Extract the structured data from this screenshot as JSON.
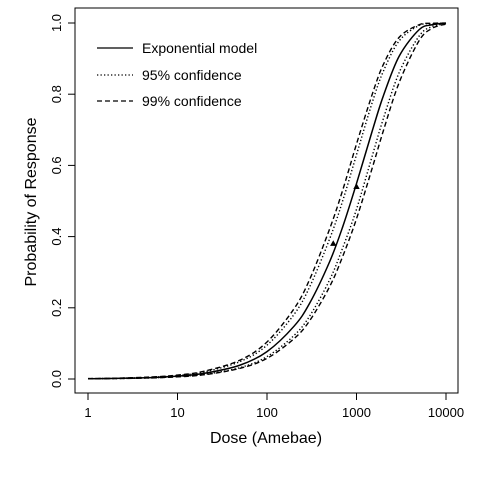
{
  "chart_data": {
    "type": "line",
    "title": "",
    "xlabel": "Dose (Amebae)",
    "ylabel": "Probability of Response",
    "x_scale": "log",
    "xlim": [
      1,
      10000
    ],
    "ylim": [
      0,
      1
    ],
    "grid": false,
    "x_ticks": [
      {
        "value": 1,
        "label": "1"
      },
      {
        "value": 10,
        "label": "10"
      },
      {
        "value": 100,
        "label": "100"
      },
      {
        "value": 1000,
        "label": "1000"
      },
      {
        "value": 10000,
        "label": "10000"
      }
    ],
    "y_ticks": [
      {
        "value": 0.0,
        "label": "0.0"
      },
      {
        "value": 0.2,
        "label": "0.2"
      },
      {
        "value": 0.4,
        "label": "0.4"
      },
      {
        "value": 0.6,
        "label": "0.6"
      },
      {
        "value": 0.8,
        "label": "0.8"
      },
      {
        "value": 1.0,
        "label": "1.0"
      }
    ],
    "legend_position": "top-left",
    "series": [
      {
        "name": "Exponential model",
        "style": "solid",
        "x": [
          1,
          2,
          5,
          10,
          20,
          50,
          100,
          200,
          300,
          500,
          700,
          1000,
          1500,
          2000,
          3000,
          5000,
          7000,
          10000
        ],
        "y": [
          0.0008,
          0.0016,
          0.004,
          0.008,
          0.016,
          0.039,
          0.077,
          0.148,
          0.213,
          0.329,
          0.427,
          0.549,
          0.697,
          0.796,
          0.907,
          0.981,
          0.995,
          0.9997
        ]
      },
      {
        "name": "95% confidence",
        "style": "dotted",
        "x": [
          1,
          2,
          5,
          10,
          20,
          50,
          100,
          200,
          300,
          500,
          700,
          1000,
          1500,
          2000,
          3000,
          5000,
          7000,
          10000
        ],
        "y": [
          0.001,
          0.002,
          0.005,
          0.01,
          0.02,
          0.049,
          0.095,
          0.181,
          0.259,
          0.393,
          0.5,
          0.63,
          0.777,
          0.865,
          0.95,
          0.993,
          0.998,
          0.9999
        ]
      },
      {
        "name": "95% confidence",
        "style": "dotted",
        "x": [
          1,
          2,
          5,
          10,
          20,
          50,
          100,
          200,
          300,
          500,
          700,
          1000,
          1500,
          2000,
          3000,
          5000,
          7000,
          10000
        ],
        "y": [
          0.0007,
          0.0013,
          0.003,
          0.007,
          0.013,
          0.032,
          0.063,
          0.122,
          0.177,
          0.278,
          0.368,
          0.477,
          0.627,
          0.732,
          0.861,
          0.963,
          0.99,
          0.998
        ]
      },
      {
        "name": "99% confidence",
        "style": "dashed",
        "x": [
          1,
          2,
          5,
          10,
          20,
          50,
          100,
          200,
          300,
          500,
          700,
          1000,
          1500,
          2000,
          3000,
          5000,
          7000,
          10000
        ],
        "y": [
          0.0011,
          0.0022,
          0.0055,
          0.011,
          0.022,
          0.053,
          0.104,
          0.197,
          0.28,
          0.421,
          0.53,
          0.66,
          0.8,
          0.884,
          0.96,
          0.995,
          0.9991,
          0.9999
        ]
      },
      {
        "name": "99% confidence",
        "style": "dashed",
        "x": [
          1,
          2,
          5,
          10,
          20,
          50,
          100,
          200,
          300,
          500,
          700,
          1000,
          1500,
          2000,
          3000,
          5000,
          7000,
          10000
        ],
        "y": [
          0.0006,
          0.0012,
          0.003,
          0.006,
          0.012,
          0.03,
          0.058,
          0.113,
          0.164,
          0.259,
          0.344,
          0.45,
          0.593,
          0.698,
          0.833,
          0.95,
          0.985,
          0.997
        ]
      }
    ],
    "observations": [
      {
        "x": 550,
        "y": 0.38
      },
      {
        "x": 1000,
        "y": 0.54
      }
    ]
  }
}
